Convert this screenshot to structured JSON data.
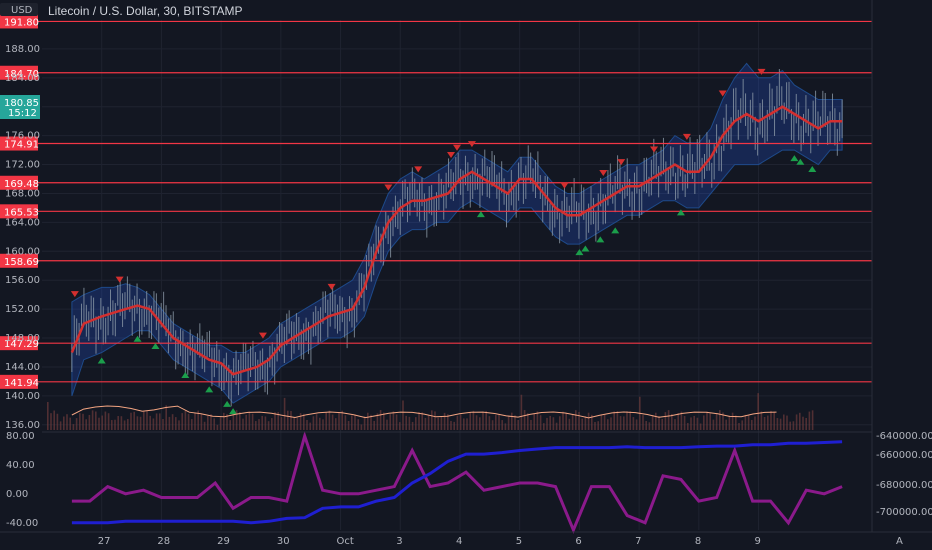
{
  "header": {
    "title": "Litecoin / U.S. Dollar, 30, BITSTAMP",
    "currency": "USD",
    "bottom_right_label": "A"
  },
  "price_badge": {
    "value": "180.85",
    "countdown": "15:12",
    "color": "#26a69a"
  },
  "chart_data": [
    {
      "type": "line",
      "panel": "price",
      "title": "Litecoin / U.S. Dollar, 30, BITSTAMP",
      "ylim": [
        135,
        192
      ],
      "y_ticks": [
        "188.00",
        "184.00",
        "180.00",
        "176.00",
        "172.00",
        "168.00",
        "164.00",
        "160.00",
        "156.00",
        "152.00",
        "148.00",
        "144.00",
        "140.00",
        "136.00"
      ],
      "x_ticks": [
        "27",
        "28",
        "29",
        "30",
        "Oct",
        "3",
        "4",
        "5",
        "6",
        "7",
        "8",
        "9"
      ],
      "x": [
        26.5,
        26.7,
        27.0,
        27.2,
        27.4,
        27.6,
        27.8,
        28.0,
        28.2,
        28.4,
        28.6,
        28.8,
        29.0,
        29.2,
        29.4,
        29.6,
        29.8,
        30.0,
        30.2,
        30.4,
        30.6,
        30.8,
        31.0,
        31.2,
        31.4,
        31.6,
        31.8,
        32.0,
        32.2,
        32.4,
        32.6,
        32.8,
        33.0,
        33.2,
        33.4,
        33.6,
        33.8,
        34.0,
        34.2,
        34.4,
        34.6,
        34.8,
        35.0,
        35.2,
        35.4,
        35.6,
        35.8,
        36.0,
        36.2,
        36.4,
        36.6,
        36.8,
        37.0,
        37.2,
        37.4,
        37.6,
        37.8,
        38.0,
        38.2,
        38.4,
        38.6,
        38.8,
        39.0,
        39.2,
        39.4
      ],
      "series": [
        {
          "values": [
            146,
            150,
            151,
            151.5,
            152,
            152.5,
            152,
            150,
            148,
            147,
            146,
            145,
            144.5,
            143,
            143.5,
            144,
            145,
            147,
            148,
            149,
            150,
            151,
            151.5,
            152,
            155,
            160,
            164,
            166,
            167,
            167,
            167.5,
            168,
            170,
            171,
            170,
            169,
            168,
            170,
            170,
            168,
            166,
            165,
            165,
            166,
            167,
            168,
            169,
            169,
            170,
            171,
            172,
            171,
            171,
            173,
            176,
            178,
            179,
            178,
            179,
            180,
            179,
            178,
            177,
            178,
            178
          ]
        },
        {
          "values": [
            153,
            154,
            155,
            155,
            155.5,
            155,
            154,
            152,
            150,
            149,
            148,
            147,
            147,
            146,
            146,
            147,
            148,
            150,
            151,
            152,
            153,
            154,
            155,
            156,
            159,
            164,
            168,
            170,
            171,
            170,
            171,
            172,
            174,
            174,
            173,
            172,
            171,
            173,
            173,
            171,
            169,
            168,
            168,
            169,
            170,
            171,
            172,
            172,
            173,
            174,
            176,
            175,
            175,
            177,
            181,
            184,
            186,
            184,
            184,
            185,
            183,
            182,
            181,
            181,
            181
          ]
        },
        {
          "values": [
            140,
            145,
            146,
            147,
            148,
            149,
            149,
            147,
            145,
            144,
            143,
            142,
            141,
            139,
            140,
            141,
            142,
            144,
            145,
            146,
            147,
            148,
            148,
            149,
            151,
            156,
            160,
            162,
            163,
            163,
            164,
            164,
            166,
            167,
            166,
            165,
            164,
            166,
            166,
            164,
            162,
            161,
            161,
            162,
            163,
            164,
            165,
            165,
            166,
            167,
            167,
            166,
            166,
            168,
            170,
            172,
            172,
            172,
            173,
            174,
            174,
            173,
            172,
            174,
            174
          ]
        }
      ],
      "horizontal_levels": [
        "191.80",
        "184.70",
        "174.91",
        "169.48",
        "165.53",
        "158.69",
        "147.29",
        "141.94"
      ],
      "level_color": "#f23645",
      "ma_color": "#d32f2f",
      "band_color": "#2962ff",
      "candle_color": "#8c9aa8",
      "sell_markers_x": [
        26.55,
        27.3,
        29.7,
        30.85,
        31.8,
        32.3,
        32.85,
        32.95,
        33.2,
        34.75,
        35.4,
        35.7,
        36.25,
        36.8,
        37.4,
        38.05
      ],
      "buy_markers_x": [
        27.0,
        27.6,
        27.9,
        28.4,
        28.8,
        29.1,
        29.2,
        33.35,
        35.0,
        35.1,
        35.35,
        35.6,
        36.7,
        38.6,
        38.7,
        38.9
      ]
    },
    {
      "type": "line",
      "panel": "oscillator",
      "ylim": [
        -50,
        80
      ],
      "y_ticks_left": [
        "80.00",
        "40.00",
        "0.00",
        "-40.00"
      ],
      "y_ticks_right": [
        "-640000.00",
        "-660000.00",
        "-680000.00",
        "-700000.00"
      ],
      "x": [
        26.5,
        26.8,
        27.1,
        27.4,
        27.7,
        28.0,
        28.3,
        28.6,
        28.9,
        29.2,
        29.5,
        29.8,
        30.1,
        30.4,
        30.7,
        31.0,
        31.3,
        31.6,
        31.9,
        32.2,
        32.5,
        32.8,
        33.1,
        33.4,
        33.7,
        34.0,
        34.3,
        34.6,
        34.9,
        35.2,
        35.5,
        35.8,
        36.1,
        36.4,
        36.7,
        37.0,
        37.3,
        37.6,
        37.9,
        38.2,
        38.5,
        38.8,
        39.1,
        39.4
      ],
      "series": [
        {
          "values": [
            -10,
            -10,
            10,
            0,
            5,
            -5,
            -5,
            -5,
            15,
            -20,
            -5,
            -5,
            -10,
            80,
            5,
            0,
            0,
            5,
            10,
            60,
            10,
            15,
            30,
            5,
            10,
            15,
            15,
            10,
            -50,
            10,
            10,
            -30,
            -40,
            25,
            20,
            -10,
            -5,
            60,
            -10,
            -10,
            -40,
            5,
            0,
            10
          ]
        },
        {
          "values": [
            -40,
            -40,
            -40,
            -38,
            -38,
            -38,
            -38,
            -38,
            -38,
            -38,
            -40,
            -38,
            -34,
            -33,
            -20,
            -18,
            -18,
            -10,
            -5,
            15,
            28,
            45,
            55,
            55,
            57,
            60,
            62,
            64,
            64,
            64,
            64,
            65,
            64,
            64,
            64,
            65,
            66,
            66,
            68,
            68,
            70,
            70,
            71,
            72
          ]
        }
      ],
      "series_colors": [
        "#8b1a8b",
        "#1f1fd1"
      ]
    }
  ]
}
